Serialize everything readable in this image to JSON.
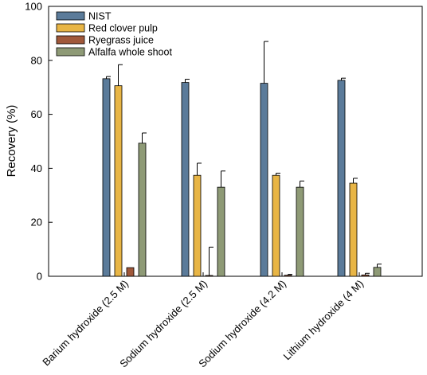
{
  "chart_data": {
    "type": "bar",
    "title": "",
    "xlabel": "",
    "ylabel": "Recovery (%)",
    "ylim": [
      0,
      100
    ],
    "yticks": [
      0,
      20,
      40,
      60,
      80,
      100
    ],
    "grid": false,
    "legend_position": "top-left",
    "categories": [
      "Barium hydroxide (2.5 M)",
      "Sodium hydroxide (2.5 M)",
      "Sodium hydroxide (4.2 M)",
      "Lithium hydroxide (4 M)"
    ],
    "series": [
      {
        "name": "NIST",
        "color": "#5B7B9A",
        "values": [
          73.2,
          71.8,
          71.5,
          72.6
        ],
        "errors": [
          0.8,
          1.2,
          15.5,
          0.8
        ]
      },
      {
        "name": "Red clover pulp",
        "color": "#E8B545",
        "values": [
          70.6,
          37.4,
          37.4,
          34.5
        ],
        "errors": [
          7.8,
          4.5,
          0.8,
          1.8
        ]
      },
      {
        "name": "Ryegrass juice",
        "color": "#A0583A",
        "values": [
          3.2,
          0.3,
          0.4,
          0.5
        ],
        "errors": [
          0,
          10.5,
          0.3,
          0.6
        ]
      },
      {
        "name": "Alfalfa whole shoot",
        "color": "#8E9A76",
        "values": [
          49.3,
          33.0,
          33.0,
          3.3
        ],
        "errors": [
          3.8,
          6.0,
          2.3,
          1.2
        ]
      }
    ]
  }
}
